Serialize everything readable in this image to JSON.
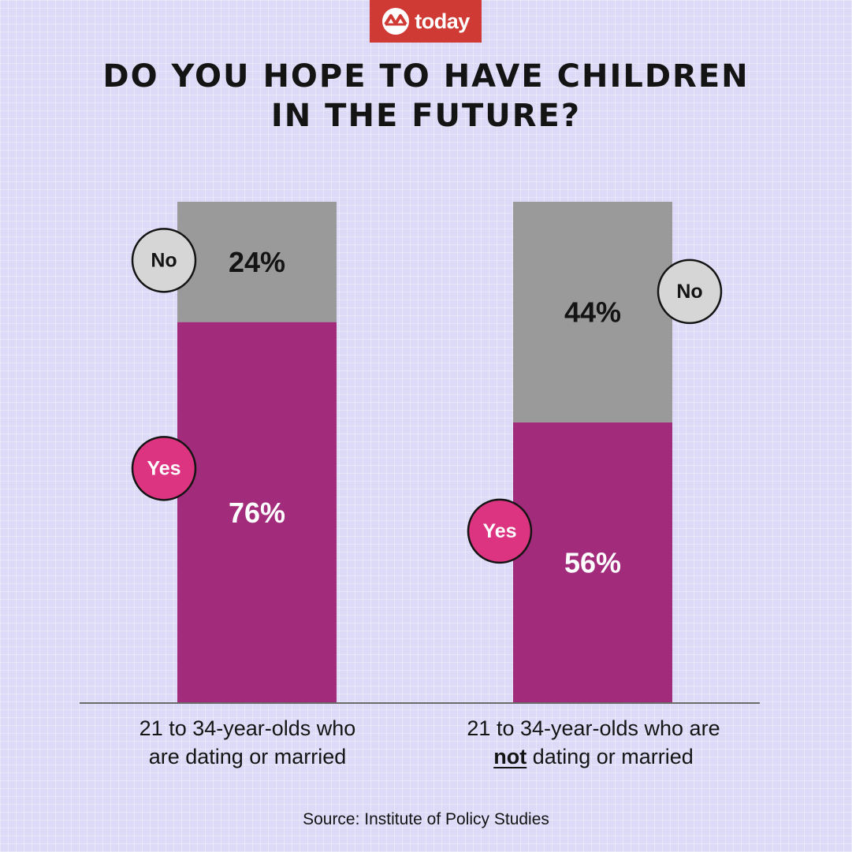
{
  "brand": {
    "logo_text": "today",
    "accent_color": "#d03a35"
  },
  "title_lines": [
    "DO YOU HOPE TO HAVE CHILDREN",
    "IN THE FUTURE?"
  ],
  "chart_data": {
    "type": "bar",
    "stacked": true,
    "unit": "%",
    "ylim": [
      0,
      100
    ],
    "grid": false,
    "categories": [
      "21 to 34-year-olds who are dating or married",
      "21 to 34-year-olds who are not dating or married"
    ],
    "series": [
      {
        "name": "Yes",
        "values": [
          76,
          56
        ],
        "color": "#a22c7b",
        "label_color": "#ffffff",
        "badge_color": "#dc3480",
        "badge_text_color": "#ffffff"
      },
      {
        "name": "No",
        "values": [
          24,
          44
        ],
        "color": "#9a9a9a",
        "label_color": "#141414",
        "badge_color": "#d6d6d6",
        "badge_text_color": "#141414"
      }
    ],
    "data_labels": [
      [
        "76%",
        "56%"
      ],
      [
        "24%",
        "44%"
      ]
    ],
    "legend": "badges beside each segment"
  },
  "category_labels": [
    {
      "line1": "21 to 34-year-olds who",
      "line2": "are dating or married"
    },
    {
      "line1": "21 to 34-year-olds who are",
      "line2_emphasis": "not",
      "line2_rest": " dating or married"
    }
  ],
  "source": "Source: Institute of Policy Studies"
}
